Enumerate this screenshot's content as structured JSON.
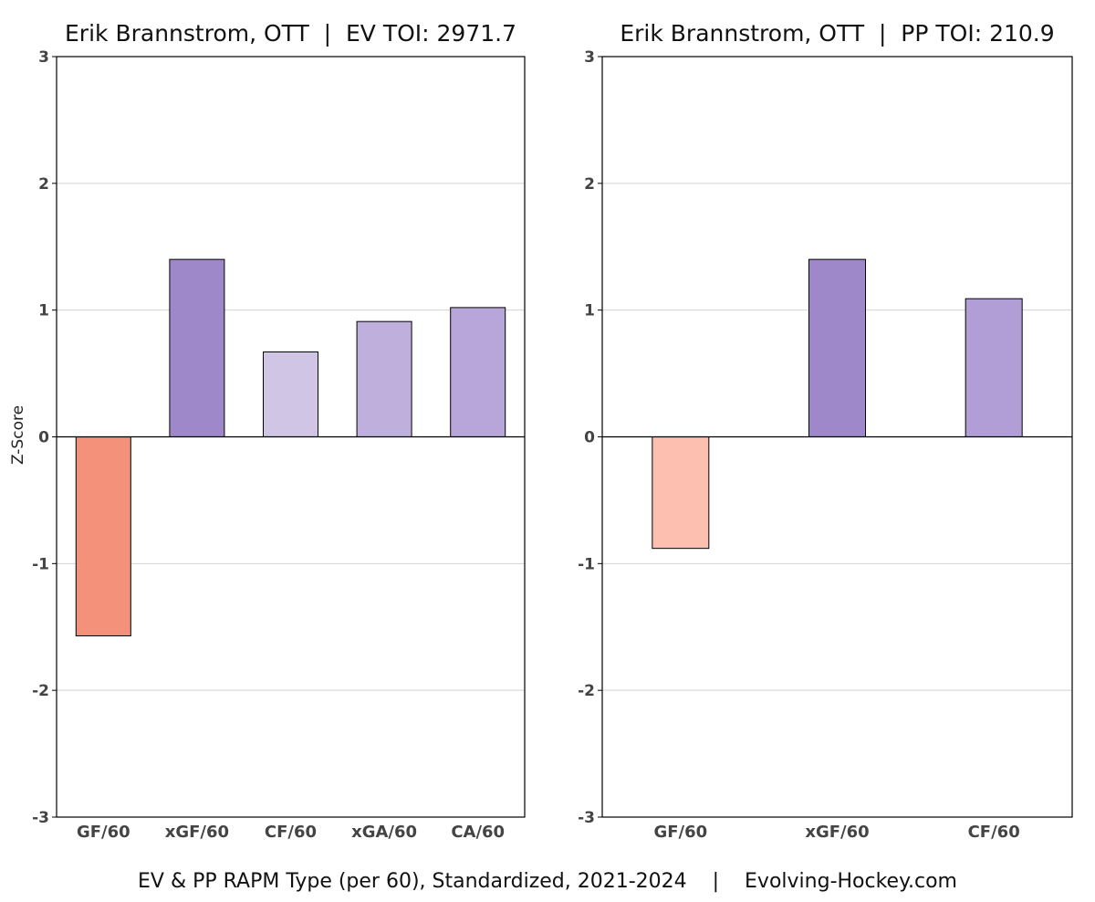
{
  "chart_data": [
    {
      "type": "bar",
      "title": "Erik Brannstrom, OTT  |  EV TOI: 2971.7",
      "ylabel": "Z-Score",
      "ylim": [
        -3,
        3
      ],
      "yticks": [
        -3,
        -2,
        -1,
        0,
        1,
        2,
        3
      ],
      "grid": true,
      "categories": [
        "GF/60",
        "xGF/60",
        "CF/60",
        "xGA/60",
        "CA/60"
      ],
      "values": [
        -1.57,
        1.4,
        0.67,
        0.91,
        1.02
      ],
      "colors": [
        "#f4917a",
        "#9f88c9",
        "#d1c5e5",
        "#bfafdc",
        "#b8a5da"
      ]
    },
    {
      "type": "bar",
      "title": "Erik Brannstrom, OTT  |  PP TOI: 210.9",
      "ylabel": "",
      "ylim": [
        -3,
        3
      ],
      "yticks": [
        -3,
        -2,
        -1,
        0,
        1,
        2,
        3
      ],
      "grid": true,
      "categories": [
        "GF/60",
        "xGF/60",
        "CF/60"
      ],
      "values": [
        -0.88,
        1.4,
        1.09
      ],
      "colors": [
        "#fdbfb0",
        "#9f88c9",
        "#b19ed6"
      ]
    }
  ],
  "caption": "EV & PP RAPM Type (per 60), Standardized, 2021-2024    |    Evolving-Hockey.com"
}
